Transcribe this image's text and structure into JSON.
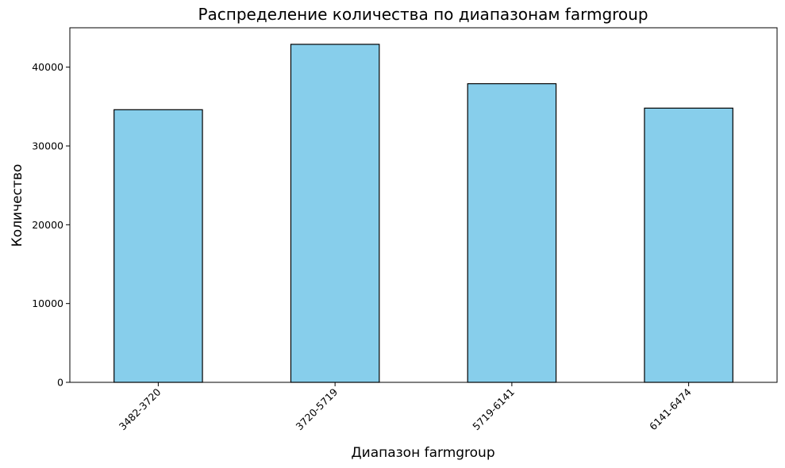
{
  "chart_data": {
    "type": "bar",
    "title": "Распределение количества по диапазонам farmgroup",
    "xlabel": "Диапазон farmgroup",
    "ylabel": "Количество",
    "categories": [
      "3482-3720",
      "3720-5719",
      "5719-6141",
      "6141-6474"
    ],
    "values": [
      34600,
      42900,
      37900,
      34800
    ],
    "ylim": [
      0,
      45000
    ],
    "yticks": [
      0,
      10000,
      20000,
      30000,
      40000
    ],
    "ytick_labels": [
      "0",
      "10000",
      "20000",
      "30000",
      "40000"
    ],
    "bar_color": "#87CEEB",
    "bar_edge_color": "#000000",
    "grid": false,
    "legend": "none",
    "xtick_rotation": 45
  }
}
